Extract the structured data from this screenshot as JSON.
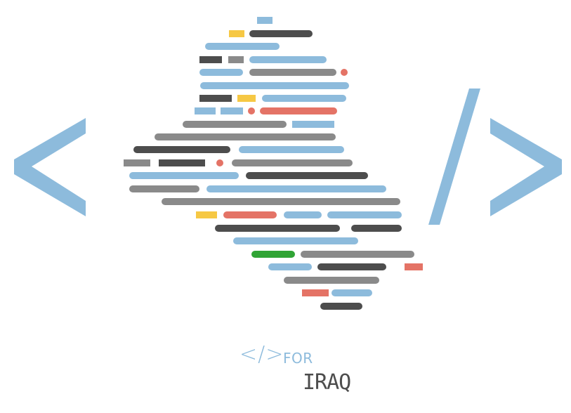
{
  "colors": {
    "blue": "#8dbbdc",
    "dark": "#4d4d4d",
    "gray": "#8a8a8a",
    "yellow": "#f6c844",
    "red": "#e47366",
    "green": "#30a435"
  },
  "logo": {
    "icon": "code-brackets-icon",
    "wordmark": {
      "tag": "</>",
      "for": "FOR",
      "country": "IRAQ"
    }
  }
}
